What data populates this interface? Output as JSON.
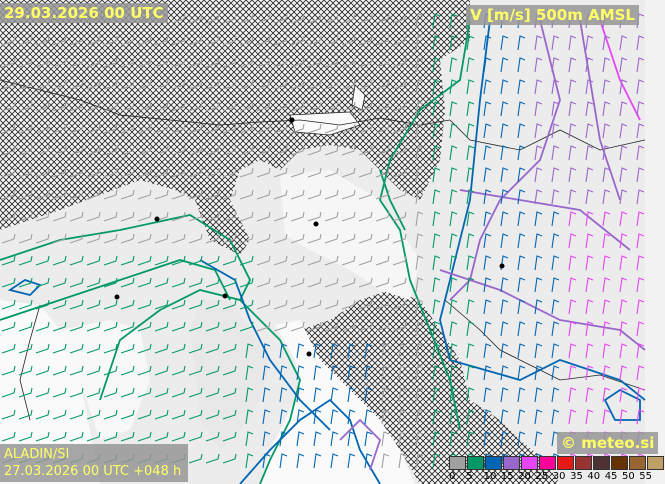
{
  "header": {
    "valid_time": "29.03.2026 00 UTC",
    "field": "V [m/s] 500m AMSL"
  },
  "footer": {
    "model": "ALADIN/SI",
    "run": "27.03.2026 00 UTC +048 h",
    "copyright": "© meteo.si"
  },
  "legend": {
    "unit": "m/s",
    "ticks": [
      "0",
      "5",
      "10",
      "15",
      "20",
      "25",
      "30",
      "35",
      "40",
      "45",
      "50",
      "55"
    ],
    "colors": [
      "#a0a0a0",
      "#009966",
      "#0066b3",
      "#9966cc",
      "#e645f5",
      "#ff0099",
      "#e61919",
      "#993333",
      "#4d3333",
      "#663300",
      "#996633",
      "#bfa066"
    ]
  },
  "map": {
    "layers": [
      "wind-barbs",
      "isotachs",
      "terrain-above-500m-hatch",
      "coastlines",
      "cities"
    ]
  }
}
